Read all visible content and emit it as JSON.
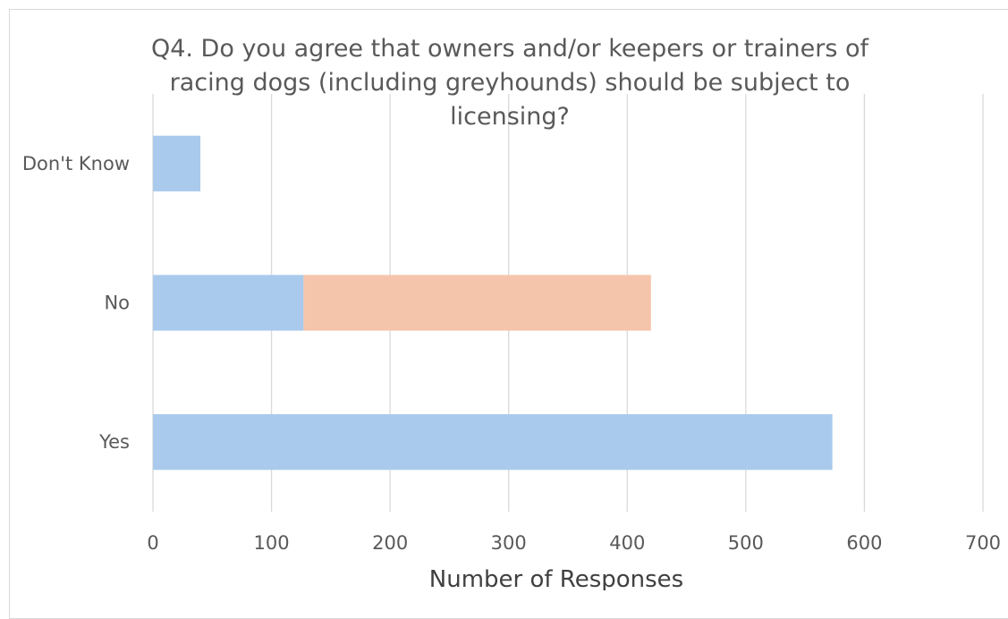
{
  "chart_data": {
    "type": "bar",
    "orientation": "horizontal",
    "stacked": true,
    "title": "Q4. Do you agree that owners and/or keepers or trainers of racing dogs (including greyhounds) should be subject to licensing?",
    "xlabel": "Number of Responses",
    "ylabel": "",
    "categories": [
      "Yes",
      "No",
      "Don't Know"
    ],
    "series": [
      {
        "values": [
          573,
          127,
          40
        ],
        "color": "#a9caec"
      },
      {
        "values": [
          0,
          293,
          0
        ],
        "color": "#f5c5ab"
      }
    ],
    "xlim": [
      0,
      700
    ],
    "xticks": [
      "0",
      "100",
      "200",
      "300",
      "400",
      "500",
      "600",
      "700"
    ],
    "grid": "vertical",
    "legend": "none"
  }
}
